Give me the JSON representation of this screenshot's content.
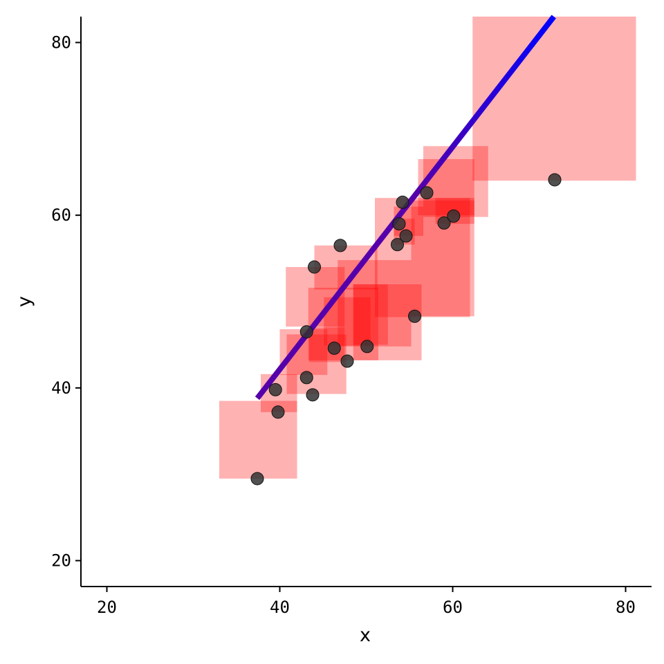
{
  "chart_data": {
    "type": "scatter",
    "title": "",
    "xlabel": "x",
    "ylabel": "y",
    "xlim": [
      17,
      83
    ],
    "ylim": [
      17,
      83
    ],
    "x_ticks": [
      20,
      40,
      60,
      80
    ],
    "y_ticks": [
      20,
      40,
      60,
      80
    ],
    "grid": false,
    "legend": "none",
    "points": [
      {
        "x": 37.4,
        "y": 29.5
      },
      {
        "x": 39.5,
        "y": 39.8
      },
      {
        "x": 39.8,
        "y": 37.2
      },
      {
        "x": 43.1,
        "y": 41.2
      },
      {
        "x": 43.1,
        "y": 46.5
      },
      {
        "x": 43.8,
        "y": 39.2
      },
      {
        "x": 44.0,
        "y": 54.0
      },
      {
        "x": 46.3,
        "y": 44.6
      },
      {
        "x": 47.0,
        "y": 56.5
      },
      {
        "x": 47.8,
        "y": 43.1
      },
      {
        "x": 50.1,
        "y": 44.8
      },
      {
        "x": 53.6,
        "y": 56.6
      },
      {
        "x": 53.8,
        "y": 59.0
      },
      {
        "x": 54.2,
        "y": 61.5
      },
      {
        "x": 54.6,
        "y": 57.6
      },
      {
        "x": 55.6,
        "y": 48.3
      },
      {
        "x": 57.0,
        "y": 62.6
      },
      {
        "x": 59.0,
        "y": 59.1
      },
      {
        "x": 60.1,
        "y": 59.9
      },
      {
        "x": 71.8,
        "y": 64.1
      }
    ],
    "boxes": [
      {
        "x": [
          33.0,
          42.0
        ],
        "y": [
          29.5,
          38.5
        ]
      },
      {
        "x": [
          37.8,
          42.0
        ],
        "y": [
          37.2,
          41.6
        ]
      },
      {
        "x": [
          40.0,
          45.5
        ],
        "y": [
          41.5,
          46.8
        ]
      },
      {
        "x": [
          40.8,
          47.7
        ],
        "y": [
          39.3,
          46.2
        ]
      },
      {
        "x": [
          40.7,
          47.5
        ],
        "y": [
          47.1,
          54.0
        ]
      },
      {
        "x": [
          43.4,
          47.5
        ],
        "y": [
          43.0,
          47.0
        ]
      },
      {
        "x": [
          43.3,
          51.4
        ],
        "y": [
          43.2,
          51.6
        ]
      },
      {
        "x": [
          44.0,
          51.3
        ],
        "y": [
          51.4,
          56.5
        ]
      },
      {
        "x": [
          45.1,
          50.5
        ],
        "y": [
          44.9,
          50.5
        ]
      },
      {
        "x": [
          46.7,
          55.2
        ],
        "y": [
          44.8,
          54.8
        ]
      },
      {
        "x": [
          48.5,
          52.5
        ],
        "y": [
          45.0,
          52.0
        ]
      },
      {
        "x": [
          48.5,
          56.4
        ],
        "y": [
          43.2,
          52.0
        ]
      },
      {
        "x": [
          51.0,
          62.0
        ],
        "y": [
          48.2,
          62.0
        ]
      },
      {
        "x": [
          53.2,
          55.6
        ],
        "y": [
          56.6,
          59.6
        ]
      },
      {
        "x": [
          53.2,
          56.6
        ],
        "y": [
          57.6,
          61.0
        ]
      },
      {
        "x": [
          55.2,
          62.5
        ],
        "y": [
          48.3,
          61.7
        ]
      },
      {
        "x": [
          56.0,
          62.5
        ],
        "y": [
          60.0,
          66.5
        ]
      },
      {
        "x": [
          56.6,
          64.1
        ],
        "y": [
          59.8,
          68.0
        ]
      },
      {
        "x": [
          58.0,
          62.5
        ],
        "y": [
          59.0,
          62.0
        ]
      },
      {
        "x": [
          62.3,
          81.2
        ],
        "y": [
          64.0,
          83.0
        ]
      }
    ],
    "fit_line": {
      "x": [
        37.4,
        71.7
      ],
      "y": [
        38.8,
        83.0
      ]
    },
    "colors": {
      "points": "#333333",
      "boxes": "#ff0000",
      "fit_line_start": "#0000ff",
      "fit_line_end": "#5500aa",
      "axis": "#000000"
    }
  }
}
